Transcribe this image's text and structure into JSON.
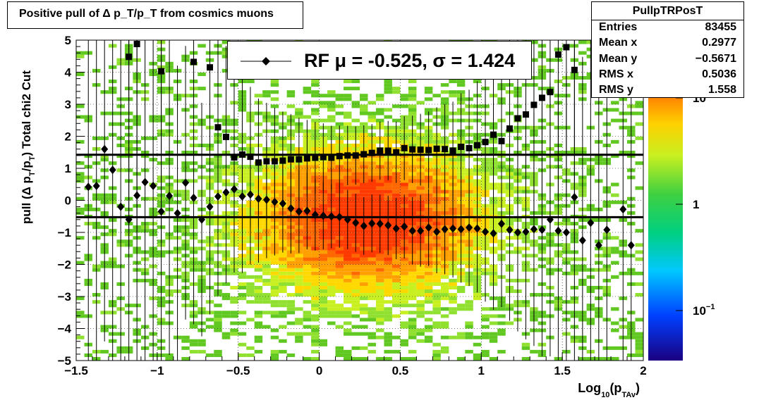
{
  "title": "Positive pull of Δ p_T/p_T from cosmics muons",
  "stats": {
    "name": "PullpTRPosT",
    "rows": [
      {
        "label": "Entries",
        "value": "83455"
      },
      {
        "label": "Mean x",
        "value": "0.2977"
      },
      {
        "label": "Mean y",
        "value": "−0.5671"
      },
      {
        "label": "RMS x",
        "value": "0.5036"
      },
      {
        "label": "RMS y",
        "value": "1.558"
      }
    ]
  },
  "legend": {
    "text": "RF μ = -0.525, σ =   1.424",
    "marker": "diamond"
  },
  "colors": {
    "sigma": "#000000",
    "mean": "#000000",
    "heat_low": "#00a000",
    "heat_high": "#ff2000"
  },
  "chart_data": {
    "type": "scatter",
    "xlabel": "Log10(pTAv)",
    "ylabel": "pull (Δ pT/pT)  Total chi2 Cut",
    "xlim": [
      -1.5,
      2
    ],
    "ylim": [
      -5,
      5
    ],
    "x_ticks": [
      "−1.5",
      "−1",
      "−0.5",
      "0",
      "0.5",
      "1",
      "1.5",
      "2"
    ],
    "y_ticks": [
      "−5",
      "−4",
      "−3",
      "−2",
      "−1",
      "0",
      "1",
      "2",
      "3",
      "4",
      "5"
    ],
    "z_ticks": [
      "10^-1",
      "1",
      "10"
    ],
    "grid": true,
    "hlines": [
      1.424,
      -0.525
    ],
    "series": [
      {
        "marker": "square",
        "points": [
          [
            -1.175,
            4.48
          ],
          [
            -1.125,
            4.88
          ],
          [
            -0.975,
            4.03
          ],
          [
            -0.775,
            4.32
          ],
          [
            -0.675,
            4.15
          ],
          [
            -0.625,
            2.28
          ],
          [
            -0.575,
            1.98
          ],
          [
            -0.525,
            1.34
          ],
          [
            -0.475,
            1.43
          ],
          [
            -0.425,
            1.36
          ],
          [
            -0.375,
            1.18
          ],
          [
            -0.325,
            1.22
          ],
          [
            -0.275,
            1.22
          ],
          [
            -0.225,
            1.24
          ],
          [
            -0.175,
            1.28
          ],
          [
            -0.125,
            1.28
          ],
          [
            -0.075,
            1.31
          ],
          [
            -0.025,
            1.33
          ],
          [
            0.025,
            1.35
          ],
          [
            0.075,
            1.33
          ],
          [
            0.125,
            1.38
          ],
          [
            0.175,
            1.4
          ],
          [
            0.225,
            1.4
          ],
          [
            0.275,
            1.44
          ],
          [
            0.325,
            1.48
          ],
          [
            0.375,
            1.55
          ],
          [
            0.425,
            1.55
          ],
          [
            0.475,
            1.5
          ],
          [
            0.525,
            1.63
          ],
          [
            0.575,
            1.59
          ],
          [
            0.625,
            1.58
          ],
          [
            0.675,
            1.57
          ],
          [
            0.725,
            1.61
          ],
          [
            0.775,
            1.6
          ],
          [
            0.825,
            1.55
          ],
          [
            0.875,
            1.67
          ],
          [
            0.925,
            1.63
          ],
          [
            0.975,
            1.72
          ],
          [
            1.025,
            1.82
          ],
          [
            1.075,
            2.05
          ],
          [
            1.125,
            1.85
          ],
          [
            1.175,
            2.24
          ],
          [
            1.225,
            2.56
          ],
          [
            1.275,
            2.68
          ],
          [
            1.325,
            2.98
          ],
          [
            1.375,
            3.2
          ],
          [
            1.425,
            3.38
          ],
          [
            1.475,
            4.55
          ],
          [
            1.525,
            4.78
          ],
          [
            1.575,
            4.07
          ]
        ]
      },
      {
        "marker": "diamond",
        "points": [
          [
            -1.425,
            0.42
          ],
          [
            -1.375,
            0.45
          ],
          [
            -1.325,
            1.6
          ],
          [
            -1.275,
            0.95
          ],
          [
            -1.225,
            -0.2
          ],
          [
            -1.175,
            -0.6
          ],
          [
            -1.125,
            0.15
          ],
          [
            -1.075,
            0.57
          ],
          [
            -1.025,
            0.45
          ],
          [
            -0.975,
            -0.35
          ],
          [
            -0.925,
            0.14
          ],
          [
            -0.875,
            -0.4
          ],
          [
            -0.825,
            0.55
          ],
          [
            -0.775,
            0.08
          ],
          [
            -0.725,
            -0.6
          ],
          [
            -0.675,
            -0.2
          ],
          [
            -0.625,
            0.12
          ],
          [
            -0.575,
            0.25
          ],
          [
            -0.525,
            0.35
          ],
          [
            -0.475,
            0.12
          ],
          [
            -0.425,
            0.18
          ],
          [
            -0.375,
            0.05
          ],
          [
            -0.325,
            0.02
          ],
          [
            -0.275,
            -0.05
          ],
          [
            -0.225,
            -0.1
          ],
          [
            -0.175,
            -0.25
          ],
          [
            -0.125,
            -0.35
          ],
          [
            -0.075,
            -0.33
          ],
          [
            -0.025,
            -0.45
          ],
          [
            0.025,
            -0.48
          ],
          [
            0.075,
            -0.5
          ],
          [
            0.125,
            -0.52
          ],
          [
            0.175,
            -0.6
          ],
          [
            0.225,
            -0.7
          ],
          [
            0.275,
            -0.8
          ],
          [
            0.325,
            -0.72
          ],
          [
            0.375,
            -0.73
          ],
          [
            0.425,
            -0.78
          ],
          [
            0.475,
            -0.88
          ],
          [
            0.525,
            -0.82
          ],
          [
            0.575,
            -0.95
          ],
          [
            0.625,
            -0.95
          ],
          [
            0.675,
            -0.85
          ],
          [
            0.725,
            -0.98
          ],
          [
            0.775,
            -0.9
          ],
          [
            0.825,
            -0.88
          ],
          [
            0.875,
            -0.9
          ],
          [
            0.925,
            -0.85
          ],
          [
            0.975,
            -0.88
          ],
          [
            1.025,
            -0.98
          ],
          [
            1.075,
            -1.03
          ],
          [
            1.125,
            -0.73
          ],
          [
            1.175,
            -0.92
          ],
          [
            1.225,
            -1.0
          ],
          [
            1.275,
            -0.98
          ],
          [
            1.325,
            -0.9
          ],
          [
            1.375,
            -0.92
          ],
          [
            1.425,
            -0.6
          ],
          [
            1.475,
            -0.95
          ],
          [
            1.525,
            -1.0
          ],
          [
            1.575,
            0.1
          ],
          [
            1.625,
            -1.25
          ],
          [
            1.675,
            -0.7
          ],
          [
            1.725,
            -1.4
          ],
          [
            1.775,
            -0.92
          ],
          [
            1.875,
            -0.28
          ],
          [
            1.925,
            -1.4
          ]
        ]
      }
    ]
  }
}
